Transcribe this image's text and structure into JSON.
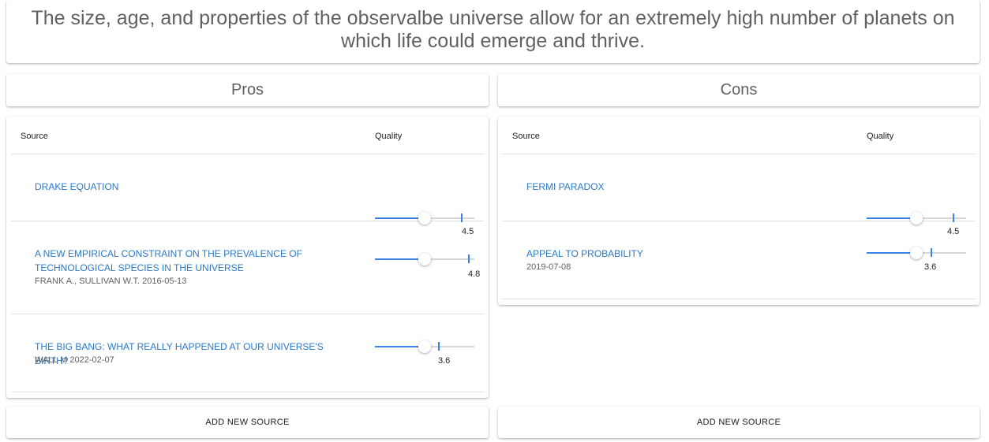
{
  "claim": "The size, age, and properties of the observalbe universe allow for an extremely high number of planets on which life could emerge and thrive.",
  "pros": {
    "header": "Pros",
    "columns": {
      "source": "Source",
      "quality": "Quality"
    },
    "items": [
      {
        "title": "DRAKE EQUATION",
        "meta": "",
        "quality": 4.5,
        "quality_label": "4.5",
        "slider_fill": 0.5
      },
      {
        "title": "A NEW EMPIRICAL CONSTRAINT ON THE PREVALENCE OF TECHNOLOGICAL SPECIES IN THE UNIVERSE",
        "meta": "FRANK A., SULLIVAN W.T. 2016-05-13",
        "quality": 4.8,
        "quality_label": "4.8",
        "slider_fill": 0.5
      },
      {
        "title": "THE BIG BANG: WHAT REALLY HAPPENED AT OUR UNIVERSE'S BIRTH?",
        "meta": "WALL M 2022-02-07",
        "quality": 3.6,
        "quality_label": "3.6",
        "slider_fill": 0.5
      }
    ],
    "add_button": "ADD NEW SOURCE"
  },
  "cons": {
    "header": "Cons",
    "columns": {
      "source": "Source",
      "quality": "Quality"
    },
    "items": [
      {
        "title": "FERMI PARADOX",
        "meta": "",
        "quality": 4.5,
        "quality_label": "4.5",
        "slider_fill": 0.5
      },
      {
        "title": "APPEAL TO PROBABILITY",
        "meta": "2019-07-08",
        "quality": 3.6,
        "quality_label": "3.6",
        "slider_fill": 0.5
      }
    ],
    "add_button": "ADD NEW SOURCE"
  },
  "colors": {
    "accent": "#3b82e6",
    "link": "#2979c9",
    "rail": "#d6d6d6"
  }
}
